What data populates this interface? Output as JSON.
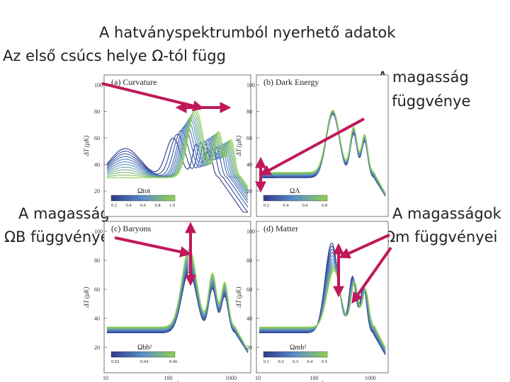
{
  "slide": {
    "title": "A hatványspektrumból nyerhető adatok",
    "subtitle": "Az első csúcs helye Ω-tól függ",
    "annotation_lambda": [
      "A magasság",
      "ΩΛ függvénye"
    ],
    "annotation_baryon": [
      "A magasság",
      "ΩB függvénye"
    ],
    "annotation_matter": [
      "A magasságok",
      "Ωm függvényei"
    ]
  },
  "colors": {
    "low": "#2e3a8c",
    "mid": "#5a8fc8",
    "high": "#8fd14f",
    "arrow": "#c0185a"
  },
  "chart_data": [
    {
      "type": "line",
      "panel": "(a) Curvature",
      "title": "(a) Curvature",
      "xlabel": "l",
      "ylabel": "ΔT (μK)",
      "x_scale": "log",
      "xlim": [
        10,
        2000
      ],
      "ylim": [
        20,
        100
      ],
      "x_ticks": [
        "10",
        "100",
        "1000"
      ],
      "y_ticks": [
        "20",
        "40",
        "60",
        "80",
        "100"
      ],
      "colorbar": {
        "label": "Ωtot",
        "ticks": [
          "0.2",
          "0.4",
          "0.6",
          "0.8",
          "1.0"
        ]
      },
      "param_values": [
        0.2,
        0.4,
        0.6,
        0.8,
        1.0
      ],
      "peak_l": [
        120,
        180,
        220,
        250,
        280
      ],
      "peak_height": [
        60,
        68,
        74,
        78,
        82
      ]
    },
    {
      "type": "line",
      "panel": "(b) Dark Energy",
      "title": "(b) Dark Energy",
      "xlabel": "l",
      "ylabel": "ΔT (μK)",
      "x_scale": "log",
      "xlim": [
        10,
        2000
      ],
      "ylim": [
        20,
        100
      ],
      "x_ticks": [
        "10",
        "100",
        "1000"
      ],
      "y_ticks": [
        "20",
        "40",
        "60",
        "80",
        "100"
      ],
      "colorbar": {
        "label": "ΩΛ",
        "ticks": [
          "0.2",
          "0.4",
          "0.6",
          "0.8"
        ]
      },
      "param_values": [
        0.2,
        0.4,
        0.6,
        0.8
      ],
      "peak_l": [
        220,
        220,
        220,
        220
      ],
      "peak_height": [
        78,
        79,
        80,
        81
      ]
    },
    {
      "type": "line",
      "panel": "(c) Baryons",
      "title": "(c) Baryons",
      "xlabel": "l",
      "ylabel": "ΔT (μK)",
      "x_scale": "log",
      "xlim": [
        10,
        2000
      ],
      "ylim": [
        20,
        100
      ],
      "x_ticks": [
        "10",
        "100",
        "1000"
      ],
      "y_ticks": [
        "20",
        "40",
        "60",
        "80",
        "100"
      ],
      "colorbar": {
        "label": "Ωbh²",
        "ticks": [
          "0.02",
          "0.04",
          "0.06"
        ]
      },
      "param_values": [
        0.02,
        0.04,
        0.06
      ],
      "peak_l": [
        220,
        220,
        220
      ],
      "peak_height": [
        72,
        80,
        88
      ]
    },
    {
      "type": "line",
      "panel": "(d) Matter",
      "title": "(d) Matter",
      "xlabel": "l",
      "ylabel": "ΔT (μK)",
      "x_scale": "log",
      "xlim": [
        10,
        2000
      ],
      "ylim": [
        20,
        100
      ],
      "x_ticks": [
        "10",
        "100",
        "1000"
      ],
      "y_ticks": [
        "20",
        "40",
        "60",
        "80",
        "100"
      ],
      "colorbar": {
        "label": "Ωmh²",
        "ticks": [
          "0.1",
          "0.2",
          "0.3",
          "0.4",
          "0.5"
        ]
      },
      "param_values": [
        0.1,
        0.2,
        0.3,
        0.4,
        0.5
      ],
      "peak_l": [
        210,
        215,
        220,
        225,
        230
      ],
      "peak_height": [
        92,
        86,
        80,
        76,
        73
      ]
    }
  ]
}
